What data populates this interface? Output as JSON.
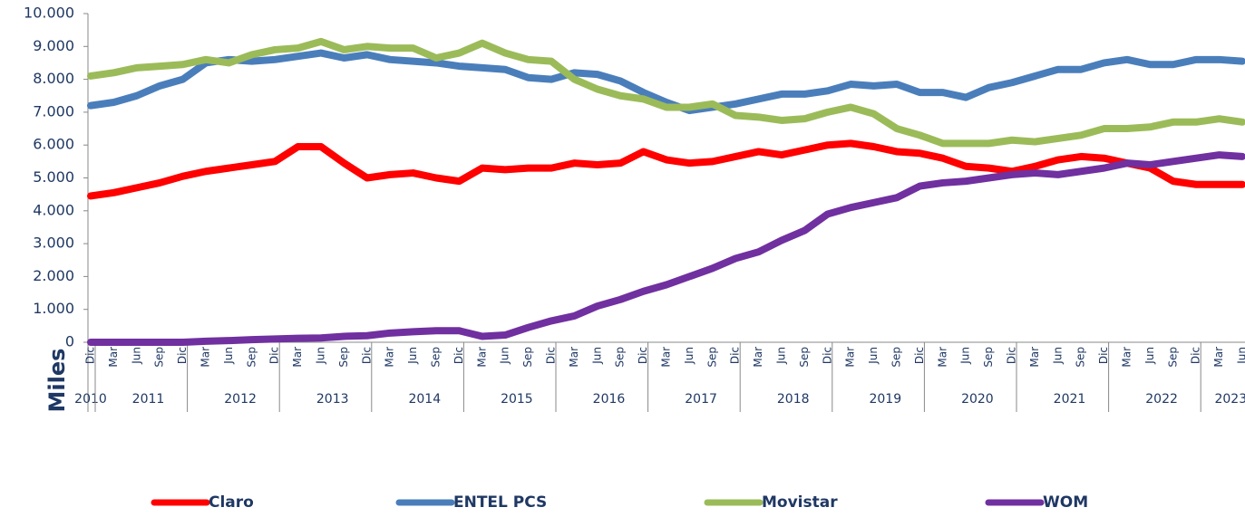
{
  "chart_data": {
    "type": "line",
    "y_axis_label": "Miles",
    "category_groups": [
      {
        "label": "2010",
        "months": [
          "Dic"
        ]
      },
      {
        "label": "2011",
        "months": [
          "Mar",
          "Jun",
          "Sep",
          "Dic"
        ]
      },
      {
        "label": "2012",
        "months": [
          "Mar",
          "Jun",
          "Sep",
          "Dic"
        ]
      },
      {
        "label": "2013",
        "months": [
          "Mar",
          "Jun",
          "Sep",
          "Dic"
        ]
      },
      {
        "label": "2014",
        "months": [
          "Mar",
          "Jun",
          "Sep",
          "Dic"
        ]
      },
      {
        "label": "2015",
        "months": [
          "Mar",
          "Jun",
          "Sep",
          "Dic"
        ]
      },
      {
        "label": "2016",
        "months": [
          "Mar",
          "Jun",
          "Sep",
          "Dic"
        ]
      },
      {
        "label": "2017",
        "months": [
          "Mar",
          "Jun",
          "Sep",
          "Dic"
        ]
      },
      {
        "label": "2018",
        "months": [
          "Mar",
          "Jun",
          "Sep",
          "Dic"
        ]
      },
      {
        "label": "2019",
        "months": [
          "Mar",
          "Jun",
          "Sep",
          "Dic"
        ]
      },
      {
        "label": "2020",
        "months": [
          "Mar",
          "Jun",
          "Sep",
          "Dic"
        ]
      },
      {
        "label": "2021",
        "months": [
          "Mar",
          "Jun",
          "Sep",
          "Dic"
        ]
      },
      {
        "label": "2022",
        "months": [
          "Mar",
          "Jun",
          "Sep",
          "Dic"
        ]
      },
      {
        "label": "2023",
        "months": [
          "Mar",
          "Jun"
        ]
      }
    ],
    "series": [
      {
        "name": "Claro",
        "color": "#ff0000",
        "values": [
          4450,
          4550,
          4700,
          4850,
          5050,
          5200,
          5300,
          5400,
          5500,
          5950,
          5950,
          5450,
          5000,
          5100,
          5150,
          5000,
          4900,
          5300,
          5250,
          5300,
          5300,
          5450,
          5400,
          5450,
          5800,
          5550,
          5450,
          5500,
          5650,
          5800,
          5700,
          5850,
          6000,
          6050,
          5950,
          5800,
          5750,
          5600,
          5350,
          5300,
          5200,
          5350,
          5550,
          5650,
          5600,
          5450,
          5300,
          4900,
          4800,
          4800,
          4800
        ]
      },
      {
        "name": "ENTEL PCS",
        "color": "#4a7ebb",
        "values": [
          7200,
          7300,
          7500,
          7800,
          8000,
          8500,
          8600,
          8550,
          8600,
          8700,
          8800,
          8650,
          8750,
          8600,
          8550,
          8500,
          8400,
          8350,
          8300,
          8050,
          8000,
          8200,
          8150,
          7950,
          7600,
          7300,
          7050,
          7150,
          7250,
          7400,
          7550,
          7550,
          7650,
          7850,
          7800,
          7850,
          7600,
          7600,
          7450,
          7750,
          7900,
          8100,
          8300,
          8300,
          8500,
          8600,
          8450,
          8450,
          8600,
          8600,
          8550
        ]
      },
      {
        "name": "Movistar",
        "color": "#9bbb59",
        "values": [
          8100,
          8200,
          8350,
          8400,
          8450,
          8600,
          8500,
          8750,
          8900,
          8950,
          9150,
          8900,
          9000,
          8950,
          8950,
          8650,
          8800,
          9100,
          8800,
          8600,
          8550,
          8000,
          7700,
          7500,
          7400,
          7150,
          7150,
          7250,
          6900,
          6850,
          6750,
          6800,
          7000,
          7150,
          6950,
          6500,
          6300,
          6050,
          6050,
          6050,
          6150,
          6100,
          6200,
          6300,
          6500,
          6500,
          6550,
          6700,
          6700,
          6800,
          6700
        ]
      },
      {
        "name": "WOM",
        "color": "#7030a0",
        "values": [
          0,
          0,
          0,
          0,
          0,
          30,
          50,
          80,
          100,
          120,
          130,
          180,
          200,
          280,
          320,
          350,
          350,
          180,
          220,
          450,
          650,
          800,
          1100,
          1300,
          1550,
          1750,
          2000,
          2250,
          2550,
          2750,
          3100,
          3400,
          3900,
          4100,
          4250,
          4400,
          4750,
          4850,
          4900,
          5000,
          5100,
          5150,
          5100,
          5200,
          5300,
          5450,
          5400,
          5500,
          5600,
          5700,
          5650
        ]
      }
    ],
    "ylim": [
      0,
      10000
    ],
    "yticks": [
      0,
      {
        "value": 1000,
        "label": "1.000"
      },
      {
        "value": 2000,
        "label": "2.000"
      },
      {
        "value": 3000,
        "label": "3.000"
      },
      {
        "value": 4000,
        "label": "4.000"
      },
      {
        "value": 5000,
        "label": "5.000"
      },
      {
        "value": 6000,
        "label": "6.000"
      },
      {
        "value": 7000,
        "label": "7.000"
      },
      {
        "value": 8000,
        "label": "8.000"
      },
      {
        "value": 9000,
        "label": "9.000"
      },
      {
        "value": 10000,
        "label": "10.000"
      }
    ]
  }
}
